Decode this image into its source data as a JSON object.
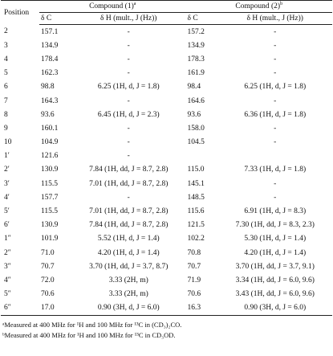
{
  "table": {
    "header": {
      "position": "Position",
      "compound1": "Compound (1)",
      "compound1_note": "a",
      "compound2": "Compound (2)",
      "compound2_note": "b"
    },
    "subheader": [
      "δ C",
      "δ H (mult., J (Hz))",
      "δ C",
      "δ H (mult., J (Hz))"
    ],
    "rows": [
      [
        "2",
        "157.1",
        "-",
        "157.2",
        "-"
      ],
      [
        "3",
        "134.9",
        "-",
        "134.9",
        "-"
      ],
      [
        "4",
        "178.4",
        "-",
        "178.3",
        "-"
      ],
      [
        "5",
        "162.3",
        "-",
        "161.9",
        "-"
      ],
      [
        "6",
        "98.8",
        "6.25 (1H, d, J = 1.8)",
        "98.4",
        "6.25 (1H, d, J = 1.8)"
      ],
      [
        "7",
        "164.3",
        "-",
        "164.6",
        "-"
      ],
      [
        "8",
        "93.6",
        "6.45 (1H, d, J = 2.3)",
        "93.6",
        "6.36 (1H, d, J = 1.8)"
      ],
      [
        "9",
        "160.1",
        "-",
        "158.0",
        "-"
      ],
      [
        "10",
        "104.9",
        "-",
        "104.5",
        "-"
      ],
      [
        "1′",
        "121.6",
        "-",
        null,
        null
      ],
      [
        "2′",
        "130.9",
        "7.84 (1H, dd, J = 8.7, 2.8)",
        "115.0",
        "7.33 (1H, d, J = 1.8)"
      ],
      [
        "3′",
        "115.5",
        "7.01 (1H, dd, J = 8.7, 2.8)",
        "145.1",
        "-"
      ],
      [
        "4′",
        "157.7",
        "-",
        "148.5",
        "-"
      ],
      [
        "5′",
        "115.5",
        "7.01 (1H, dd, J = 8.7, 2.8)",
        "115.6",
        "6.91 (1H, d, J = 8.3)"
      ],
      [
        "6′",
        "130.9",
        "7.84 (1H, dd, J = 8.7, 2.8)",
        "121.5",
        "7.30 (1H, dd, J = 8.3, 2.3)"
      ],
      [
        "1″",
        "101.9",
        "5.52 (1H, d, J = 1.4)",
        "102.2",
        "5.30 (1H, d, J = 1.4)"
      ],
      [
        "2″",
        "71.0",
        "4.20 (1H, d, J = 1.4)",
        "70.8",
        "4.20 (1H, d, J = 1.4)"
      ],
      [
        "3″",
        "70.7",
        "3.70 (1H, dd, J = 3.7, 8.7)",
        "70.7",
        "3.70 (1H, dd, J = 3.7, 9.1)"
      ],
      [
        "4″",
        "72.0",
        "3.33 (2H, m)",
        "71.9",
        "3.34 (1H, dd, J = 6.0, 9.6)"
      ],
      [
        "5″",
        "70.6",
        "3.33 (2H, m)",
        "70.6",
        "3.43 (1H, dd, J = 6.0, 9.6)"
      ],
      [
        "6″",
        "17.0",
        "0.90 (3H, d, J = 6.0)",
        "16.3",
        "0.90 (3H, d, J = 6.0)"
      ]
    ],
    "footnotes": [
      "ᵃMeasured at 400 MHz for ¹H and 100 MHz for ¹³C in (CD₃)₂CO.",
      "ᵇMeasured at 400 MHz for ¹H and 100 MHz for ¹³C  in CD₃OD."
    ]
  }
}
